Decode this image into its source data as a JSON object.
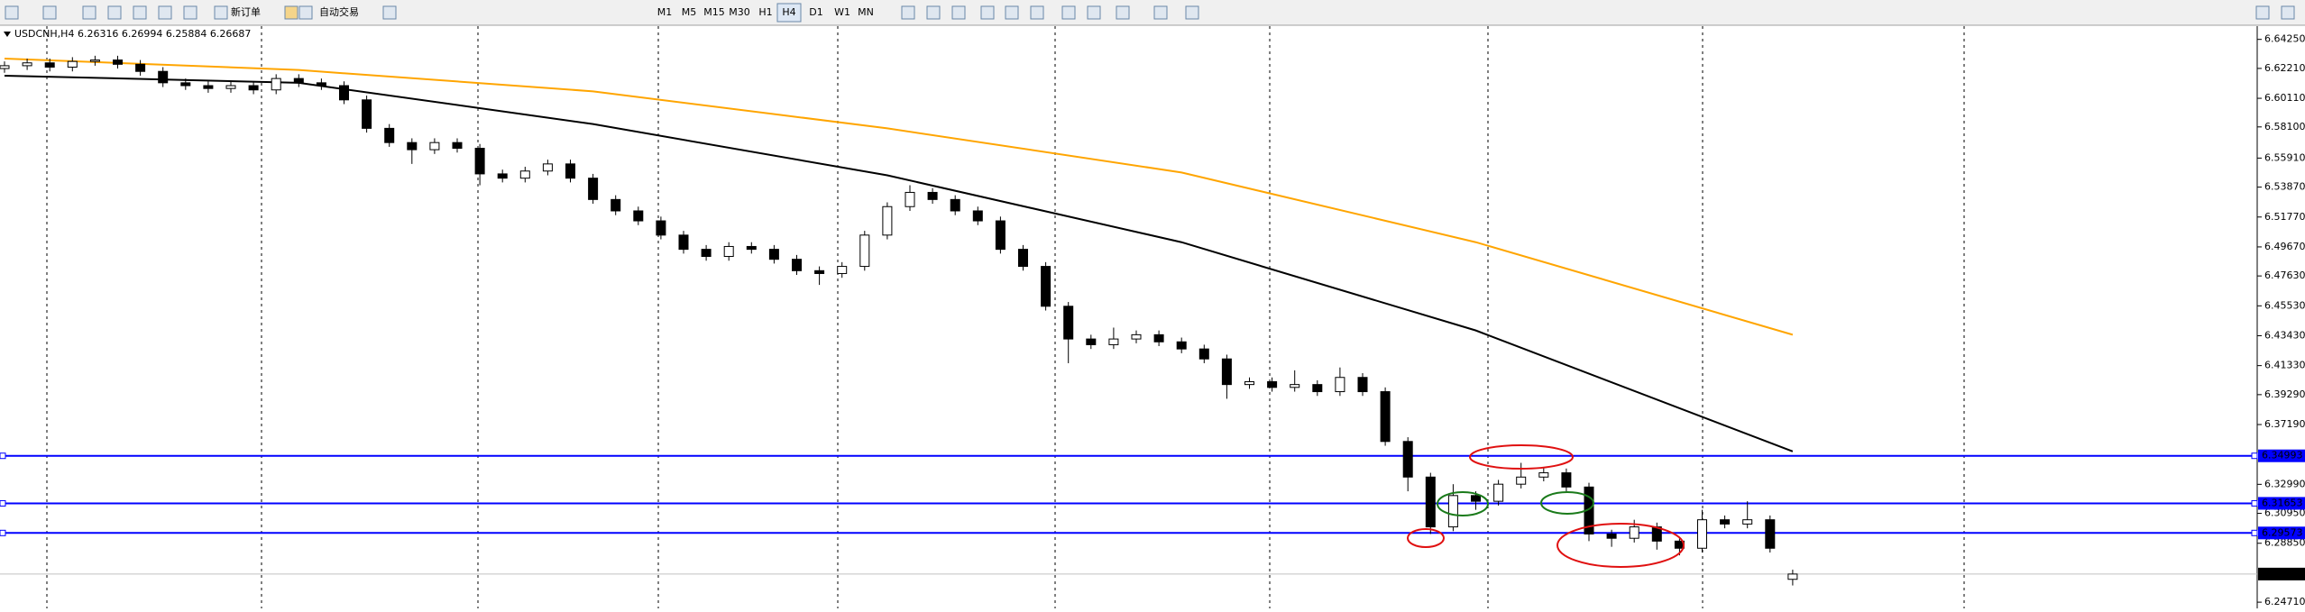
{
  "toolbar": {
    "new_order": "新订单",
    "auto_trading": "自动交易",
    "timeframes": [
      "M1",
      "M5",
      "M15",
      "M30",
      "H1",
      "H4",
      "D1",
      "W1",
      "MN"
    ],
    "active_timeframe": "H4"
  },
  "chart_data": {
    "type": "candlestick",
    "title": "USDCNH,H4  6.26316 6.26994 6.25884 6.26687",
    "open": [
      6.622,
      6.624,
      6.626,
      6.623,
      6.627,
      6.628,
      6.625,
      6.62,
      6.612,
      6.61,
      6.608,
      6.61,
      6.607,
      6.615,
      6.612,
      6.61,
      6.6,
      6.58,
      6.57,
      6.565,
      6.57,
      6.566,
      6.548,
      6.545,
      6.55,
      6.555,
      6.545,
      6.53,
      6.522,
      6.515,
      6.505,
      6.495,
      6.49,
      6.497,
      6.495,
      6.488,
      6.48,
      6.478,
      6.483,
      6.505,
      6.525,
      6.535,
      6.53,
      6.522,
      6.515,
      6.495,
      6.483,
      6.455,
      6.432,
      6.428,
      6.432,
      6.435,
      6.43,
      6.425,
      6.418,
      6.4,
      6.402,
      6.398,
      6.4,
      6.395,
      6.405,
      6.395,
      6.36,
      6.335,
      6.3,
      6.322,
      6.318,
      6.33,
      6.335,
      6.338,
      6.328,
      6.295,
      6.292,
      6.3,
      6.29,
      6.285,
      6.305,
      6.302,
      6.305,
      6.26316
    ],
    "high": [
      6.627,
      6.629,
      6.629,
      6.63,
      6.631,
      6.631,
      6.628,
      6.623,
      6.615,
      6.613,
      6.613,
      6.613,
      6.618,
      6.618,
      6.615,
      6.613,
      6.603,
      6.583,
      6.573,
      6.573,
      6.573,
      6.569,
      6.551,
      6.553,
      6.558,
      6.558,
      6.548,
      6.533,
      6.525,
      6.518,
      6.508,
      6.498,
      6.5,
      6.5,
      6.498,
      6.491,
      6.483,
      6.486,
      6.508,
      6.528,
      6.54,
      6.538,
      6.533,
      6.525,
      6.518,
      6.498,
      6.486,
      6.458,
      6.435,
      6.44,
      6.438,
      6.438,
      6.433,
      6.428,
      6.421,
      6.405,
      6.405,
      6.41,
      6.403,
      6.412,
      6.408,
      6.398,
      6.363,
      6.338,
      6.33,
      6.325,
      6.333,
      6.345,
      6.342,
      6.341,
      6.331,
      6.298,
      6.305,
      6.303,
      6.293,
      6.312,
      6.308,
      6.318,
      6.308,
      6.26994
    ],
    "low": [
      6.619,
      6.621,
      6.62,
      6.62,
      6.624,
      6.622,
      6.617,
      6.609,
      6.607,
      6.605,
      6.605,
      6.604,
      6.604,
      6.609,
      6.607,
      6.597,
      6.577,
      6.567,
      6.555,
      6.562,
      6.563,
      6.54,
      6.542,
      6.542,
      6.547,
      6.542,
      6.527,
      6.519,
      6.512,
      6.502,
      6.492,
      6.487,
      6.487,
      6.492,
      6.485,
      6.477,
      6.47,
      6.475,
      6.48,
      6.502,
      6.522,
      6.527,
      6.519,
      6.512,
      6.492,
      6.48,
      6.452,
      6.415,
      6.425,
      6.425,
      6.429,
      6.427,
      6.422,
      6.415,
      6.39,
      6.397,
      6.395,
      6.395,
      6.392,
      6.392,
      6.392,
      6.357,
      6.325,
      6.295,
      6.297,
      6.312,
      6.315,
      6.327,
      6.332,
      6.325,
      6.29,
      6.286,
      6.289,
      6.284,
      6.28,
      6.282,
      6.299,
      6.299,
      6.282,
      6.25884
    ],
    "close": [
      6.624,
      6.626,
      6.623,
      6.627,
      6.628,
      6.625,
      6.62,
      6.612,
      6.61,
      6.608,
      6.61,
      6.607,
      6.615,
      6.612,
      6.61,
      6.6,
      6.58,
      6.57,
      6.565,
      6.57,
      6.566,
      6.548,
      6.545,
      6.55,
      6.555,
      6.545,
      6.53,
      6.522,
      6.515,
      6.505,
      6.495,
      6.49,
      6.497,
      6.495,
      6.488,
      6.48,
      6.478,
      6.483,
      6.505,
      6.525,
      6.535,
      6.53,
      6.522,
      6.515,
      6.495,
      6.483,
      6.455,
      6.432,
      6.428,
      6.432,
      6.435,
      6.43,
      6.425,
      6.418,
      6.4,
      6.402,
      6.398,
      6.4,
      6.395,
      6.405,
      6.395,
      6.36,
      6.335,
      6.3,
      6.322,
      6.318,
      6.33,
      6.335,
      6.338,
      6.328,
      6.295,
      6.292,
      6.3,
      6.29,
      6.285,
      6.305,
      6.302,
      6.305,
      6.285,
      6.26687
    ],
    "overlays": [
      {
        "color": "#ffa500",
        "x": [
          0,
          13,
          26,
          39,
          52,
          65,
          79
        ],
        "values": [
          6.629,
          6.621,
          6.606,
          6.58,
          6.549,
          6.5,
          6.435
        ]
      },
      {
        "color": "#000000",
        "x": [
          0,
          13,
          26,
          39,
          52,
          65,
          79
        ],
        "values": [
          6.617,
          6.612,
          6.583,
          6.547,
          6.5,
          6.438,
          6.353
        ]
      }
    ],
    "hlines": [
      6.34993,
      6.31653,
      6.29573
    ],
    "hline_color": "#0000ff",
    "last_price": 6.26687,
    "ylim": [
      6.244,
      6.6518
    ],
    "yticks": [
      {
        "value": 6.6425,
        "label": "6.64250"
      },
      {
        "value": 6.6221,
        "label": "6.62210"
      },
      {
        "value": 6.6011,
        "label": "6.60110"
      },
      {
        "value": 6.581,
        "label": "6.58100"
      },
      {
        "value": 6.5591,
        "label": "6.55910"
      },
      {
        "value": 6.5387,
        "label": "6.53870"
      },
      {
        "value": 6.5177,
        "label": "6.51770"
      },
      {
        "value": 6.4967,
        "label": "6.49670"
      },
      {
        "value": 6.4763,
        "label": "6.47630"
      },
      {
        "value": 6.4553,
        "label": "6.45530"
      },
      {
        "value": 6.4343,
        "label": "6.43430"
      },
      {
        "value": 6.4133,
        "label": "6.41330"
      },
      {
        "value": 6.3929,
        "label": "6.39290"
      },
      {
        "value": 6.3719,
        "label": "6.37190"
      },
      {
        "value": 6.3299,
        "label": "6.32990"
      },
      {
        "value": 6.3095,
        "label": "6.30950"
      },
      {
        "value": 6.2885,
        "label": "6.28850"
      },
      {
        "value": 6.2471,
        "label": "6.24710"
      }
    ]
  }
}
